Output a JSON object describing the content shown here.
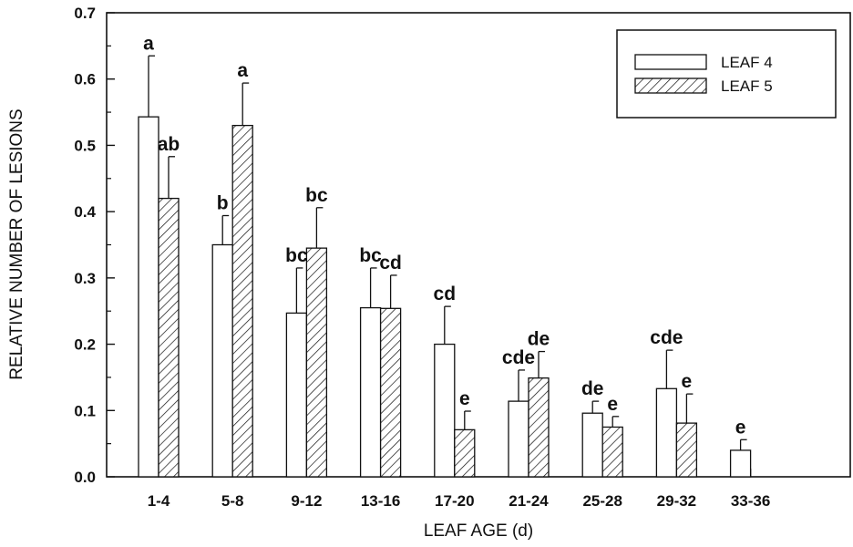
{
  "chart_data": {
    "type": "bar",
    "title": "",
    "xlabel": "LEAF AGE (d)",
    "ylabel": "RELATIVE NUMBER OF LESIONS",
    "ylim": [
      0,
      0.7
    ],
    "yticks": [
      "0.0",
      "0.1",
      "0.2",
      "0.3",
      "0.4",
      "0.5",
      "0.6",
      "0.7"
    ],
    "categories": [
      "1-4",
      "5-8",
      "9-12",
      "13-16",
      "17-20",
      "21-24",
      "25-28",
      "29-32",
      "33-36"
    ],
    "legend_position": "top-right",
    "grid": false,
    "series": [
      {
        "name": "LEAF 4",
        "fill": "open",
        "values": [
          0.543,
          0.35,
          0.247,
          0.255,
          0.2,
          0.114,
          0.096,
          0.133,
          0.04
        ],
        "errors": [
          0.092,
          0.044,
          0.068,
          0.06,
          0.057,
          0.047,
          0.018,
          0.058,
          0.016
        ],
        "labels": [
          "a",
          "b",
          "bc",
          "bc",
          "cd",
          "cde",
          "de",
          "cde",
          "e"
        ]
      },
      {
        "name": "LEAF 5",
        "fill": "hatched",
        "values": [
          0.42,
          0.53,
          0.345,
          0.254,
          0.071,
          0.149,
          0.075,
          0.081,
          null
        ],
        "errors": [
          0.063,
          0.064,
          0.061,
          0.05,
          0.028,
          0.04,
          0.016,
          0.044,
          null
        ],
        "labels": [
          "ab",
          "a",
          "bc",
          "cd",
          "e",
          "de",
          "e",
          "e",
          ""
        ]
      }
    ]
  }
}
